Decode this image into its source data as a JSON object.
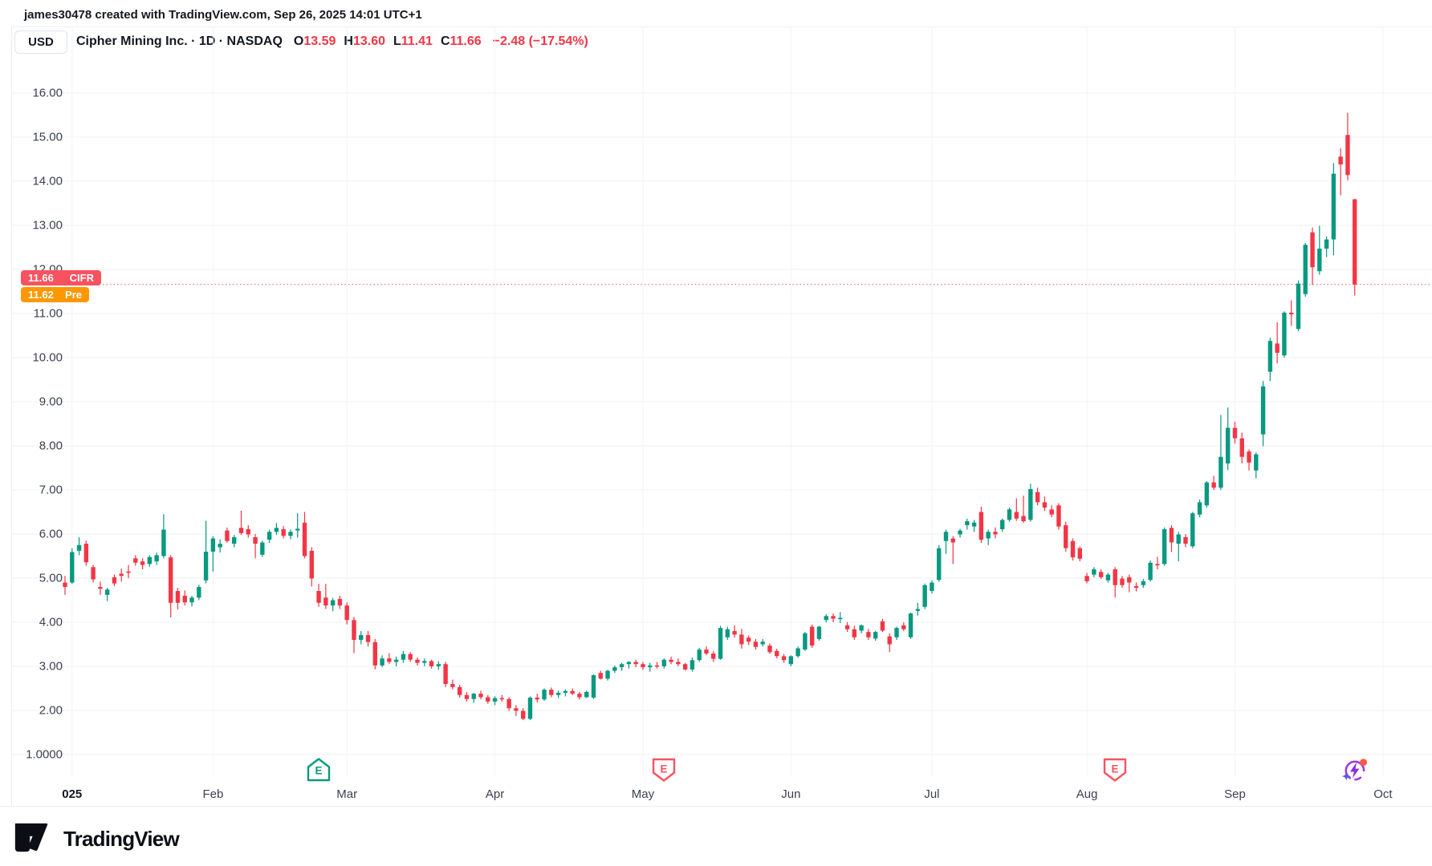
{
  "header": {
    "attribution": "james30478 created with TradingView.com, Sep 26, 2025 14:01 UTC+1"
  },
  "toolbar": {
    "currency_button": "USD"
  },
  "legend": {
    "title": "Cipher Mining Inc. · 1D · NASDAQ",
    "ohlc": [
      {
        "label": "O",
        "value": "13.59"
      },
      {
        "label": "H",
        "value": "13.60"
      },
      {
        "label": "L",
        "value": "11.41"
      },
      {
        "label": "C",
        "value": "11.66"
      }
    ],
    "change": "−2.48 (−17.54%)"
  },
  "price_labels": {
    "last": {
      "value": "11.66",
      "tag": "CIFR",
      "color": "#f7525f"
    },
    "pre": {
      "value": "11.62",
      "tag": "Pre",
      "color": "#ff9800"
    }
  },
  "footer": {
    "brand": "TradingView"
  },
  "chart_data": {
    "type": "candlestick",
    "title": "Cipher Mining Inc.",
    "symbol": "CIFR",
    "exchange": "NASDAQ",
    "interval": "1D",
    "currency": "USD",
    "last_bar": {
      "open": 13.59,
      "high": 13.6,
      "low": 11.41,
      "close": 11.66,
      "change": -2.48,
      "change_pct": -17.54
    },
    "price_line": 11.66,
    "premarket_price": 11.62,
    "ylim": [
      0.6,
      16.6
    ],
    "grid": true,
    "colors": {
      "up": "#089981",
      "down": "#f23645",
      "grid": "#f1f2f5",
      "axis_text": "#3c4150",
      "accent_red": "#f7525f",
      "accent_orange": "#ff9800"
    },
    "y_axis": {
      "ticks": [
        {
          "price": 16,
          "label": "16.00"
        },
        {
          "price": 15,
          "label": "15.00"
        },
        {
          "price": 14,
          "label": "14.00"
        },
        {
          "price": 13,
          "label": "13.00"
        },
        {
          "price": 12,
          "label": "12.00"
        },
        {
          "price": 11,
          "label": "11.00"
        },
        {
          "price": 10,
          "label": "10.00"
        },
        {
          "price": 9,
          "label": "9.00"
        },
        {
          "price": 8,
          "label": "8.00"
        },
        {
          "price": 7,
          "label": "7.00"
        },
        {
          "price": 6,
          "label": "6.00"
        },
        {
          "price": 5,
          "label": "5.00"
        },
        {
          "price": 4,
          "label": "4.00"
        },
        {
          "price": 3,
          "label": "3.00"
        },
        {
          "price": 2,
          "label": "2.00"
        },
        {
          "price": 1,
          "label": "1.0000"
        }
      ]
    },
    "x_axis": {
      "labels": [
        {
          "label": "025",
          "i": 1,
          "year": true
        },
        {
          "label": "Feb",
          "i": 21
        },
        {
          "label": "Mar",
          "i": 40
        },
        {
          "label": "Apr",
          "i": 61
        },
        {
          "label": "May",
          "i": 82
        },
        {
          "label": "Jun",
          "i": 103
        },
        {
          "label": "Jul",
          "i": 123
        },
        {
          "label": "Aug",
          "i": 145
        },
        {
          "label": "Sep",
          "i": 166
        },
        {
          "label": "Oct",
          "i": 187
        }
      ]
    },
    "markers": [
      {
        "kind": "earnings-up",
        "i": 36,
        "color": "#089981"
      },
      {
        "kind": "earnings-down",
        "i": 85,
        "color": "#f7525f"
      },
      {
        "kind": "earnings-down",
        "i": 149,
        "color": "#f7525f"
      }
    ],
    "candles": [
      [
        4.9,
        5.05,
        4.62,
        4.8
      ],
      [
        4.9,
        5.68,
        4.87,
        5.59
      ],
      [
        5.62,
        5.93,
        5.52,
        5.75
      ],
      [
        5.78,
        5.85,
        5.28,
        5.36
      ],
      [
        5.25,
        5.3,
        4.9,
        4.97
      ],
      [
        4.8,
        4.92,
        4.62,
        4.76
      ],
      [
        4.62,
        4.78,
        4.48,
        4.74
      ],
      [
        5.02,
        5.08,
        4.82,
        4.88
      ],
      [
        5.1,
        5.22,
        4.92,
        5.05
      ],
      [
        5.15,
        5.3,
        5.0,
        5.12
      ],
      [
        5.45,
        5.52,
        5.28,
        5.35
      ],
      [
        5.38,
        5.45,
        5.2,
        5.3
      ],
      [
        5.32,
        5.52,
        5.26,
        5.48
      ],
      [
        5.38,
        5.58,
        5.3,
        5.52
      ],
      [
        5.5,
        6.45,
        5.45,
        6.1
      ],
      [
        5.47,
        5.52,
        4.11,
        4.44
      ],
      [
        4.71,
        4.78,
        4.29,
        4.44
      ],
      [
        4.6,
        4.72,
        4.38,
        4.45
      ],
      [
        4.45,
        4.6,
        4.36,
        4.56
      ],
      [
        4.56,
        4.85,
        4.5,
        4.8
      ],
      [
        4.95,
        6.3,
        4.88,
        5.6
      ],
      [
        5.6,
        5.95,
        5.15,
        5.9
      ],
      [
        5.7,
        5.88,
        5.58,
        5.78
      ],
      [
        6.08,
        6.15,
        5.8,
        5.84
      ],
      [
        5.78,
        5.98,
        5.7,
        5.93
      ],
      [
        6.14,
        6.53,
        5.98,
        6.02
      ],
      [
        6.11,
        6.2,
        5.92,
        5.99
      ],
      [
        5.93,
        6.0,
        5.45,
        5.78
      ],
      [
        5.53,
        5.85,
        5.48,
        5.81
      ],
      [
        5.87,
        6.1,
        5.8,
        6.05
      ],
      [
        6.05,
        6.25,
        5.98,
        6.14
      ],
      [
        6.11,
        6.18,
        5.9,
        5.96
      ],
      [
        5.96,
        6.1,
        5.88,
        6.05
      ],
      [
        6.08,
        6.47,
        5.92,
        6.12
      ],
      [
        6.26,
        6.5,
        5.45,
        5.5
      ],
      [
        5.62,
        5.7,
        4.81,
        4.99
      ],
      [
        4.71,
        4.87,
        4.35,
        4.44
      ],
      [
        4.56,
        4.87,
        4.3,
        4.38
      ],
      [
        4.38,
        4.55,
        4.25,
        4.5
      ],
      [
        4.53,
        4.6,
        4.3,
        4.38
      ],
      [
        4.38,
        4.45,
        3.95,
        4.05
      ],
      [
        4.05,
        4.12,
        3.3,
        3.6
      ],
      [
        3.6,
        3.8,
        3.5,
        3.71
      ],
      [
        3.71,
        3.8,
        3.45,
        3.55
      ],
      [
        3.55,
        3.62,
        2.93,
        3.02
      ],
      [
        3.02,
        3.25,
        2.98,
        3.18
      ],
      [
        3.18,
        3.3,
        3.05,
        3.1
      ],
      [
        3.1,
        3.22,
        3.0,
        3.15
      ],
      [
        3.15,
        3.35,
        3.08,
        3.28
      ],
      [
        3.28,
        3.32,
        3.1,
        3.15
      ],
      [
        3.15,
        3.2,
        3.02,
        3.08
      ],
      [
        3.08,
        3.18,
        3.0,
        3.12
      ],
      [
        3.12,
        3.15,
        2.95,
        3.0
      ],
      [
        3.0,
        3.12,
        2.92,
        3.05
      ],
      [
        3.05,
        3.1,
        2.53,
        2.6
      ],
      [
        2.6,
        2.7,
        2.48,
        2.53
      ],
      [
        2.53,
        2.58,
        2.29,
        2.35
      ],
      [
        2.35,
        2.42,
        2.2,
        2.26
      ],
      [
        2.26,
        2.4,
        2.17,
        2.38
      ],
      [
        2.38,
        2.45,
        2.25,
        2.3
      ],
      [
        2.3,
        2.35,
        2.15,
        2.2
      ],
      [
        2.2,
        2.32,
        2.12,
        2.28
      ],
      [
        2.28,
        2.35,
        2.2,
        2.26
      ],
      [
        2.26,
        2.3,
        1.99,
        2.05
      ],
      [
        2.05,
        2.12,
        1.87,
        1.99
      ],
      [
        1.99,
        2.05,
        1.78,
        1.81
      ],
      [
        1.81,
        2.32,
        1.78,
        2.29
      ],
      [
        2.29,
        2.38,
        2.18,
        2.25
      ],
      [
        2.25,
        2.5,
        2.22,
        2.47
      ],
      [
        2.47,
        2.52,
        2.3,
        2.35
      ],
      [
        2.35,
        2.45,
        2.28,
        2.4
      ],
      [
        2.4,
        2.48,
        2.32,
        2.44
      ],
      [
        2.44,
        2.5,
        2.35,
        2.38
      ],
      [
        2.38,
        2.42,
        2.25,
        2.3
      ],
      [
        2.3,
        2.45,
        2.28,
        2.42
      ],
      [
        2.29,
        2.82,
        2.26,
        2.8
      ],
      [
        2.85,
        2.9,
        2.7,
        2.72
      ],
      [
        2.72,
        2.92,
        2.68,
        2.9
      ],
      [
        2.9,
        3.02,
        2.85,
        2.98
      ],
      [
        2.98,
        3.08,
        2.9,
        3.05
      ],
      [
        3.05,
        3.12,
        2.95,
        3.1
      ],
      [
        3.1,
        3.15,
        2.98,
        3.05
      ],
      [
        3.05,
        3.1,
        2.92,
        2.98
      ],
      [
        2.98,
        3.08,
        2.88,
        3.02
      ],
      [
        3.02,
        3.1,
        2.95,
        3.0
      ],
      [
        3.0,
        3.18,
        2.95,
        3.15
      ],
      [
        3.15,
        3.22,
        3.05,
        3.1
      ],
      [
        3.1,
        3.18,
        3.0,
        3.05
      ],
      [
        3.05,
        3.08,
        2.9,
        2.93
      ],
      [
        2.93,
        3.2,
        2.88,
        3.14
      ],
      [
        3.14,
        3.42,
        3.1,
        3.38
      ],
      [
        3.38,
        3.45,
        3.25,
        3.29
      ],
      [
        3.29,
        3.35,
        3.1,
        3.17
      ],
      [
        3.17,
        3.92,
        3.15,
        3.87
      ],
      [
        3.66,
        3.9,
        3.6,
        3.84
      ],
      [
        3.8,
        3.93,
        3.65,
        3.72
      ],
      [
        3.72,
        3.85,
        3.4,
        3.5
      ],
      [
        3.65,
        3.7,
        3.48,
        3.56
      ],
      [
        3.56,
        3.62,
        3.38,
        3.44
      ],
      [
        3.5,
        3.62,
        3.45,
        3.56
      ],
      [
        3.47,
        3.52,
        3.28,
        3.32
      ],
      [
        3.35,
        3.4,
        3.18,
        3.23
      ],
      [
        3.23,
        3.28,
        3.08,
        3.14
      ],
      [
        3.05,
        3.25,
        3.0,
        3.23
      ],
      [
        3.23,
        3.45,
        3.2,
        3.41
      ],
      [
        3.38,
        3.78,
        3.35,
        3.75
      ],
      [
        3.9,
        3.95,
        3.42,
        3.47
      ],
      [
        3.62,
        3.92,
        3.58,
        3.9
      ],
      [
        4.05,
        4.18,
        4.0,
        4.14
      ],
      [
        4.14,
        4.2,
        4.0,
        4.08
      ],
      [
        4.08,
        4.23,
        3.98,
        4.1
      ],
      [
        3.93,
        4.0,
        3.78,
        3.84
      ],
      [
        3.84,
        3.92,
        3.6,
        3.66
      ],
      [
        3.81,
        3.95,
        3.75,
        3.93
      ],
      [
        3.78,
        3.85,
        3.6,
        3.66
      ],
      [
        3.63,
        3.8,
        3.58,
        3.78
      ],
      [
        4.02,
        4.08,
        3.78,
        3.81
      ],
      [
        3.68,
        3.75,
        3.32,
        3.5
      ],
      [
        3.66,
        3.9,
        3.6,
        3.87
      ],
      [
        3.93,
        4.0,
        3.8,
        3.84
      ],
      [
        3.66,
        4.22,
        3.62,
        4.2
      ],
      [
        4.26,
        4.44,
        4.15,
        4.3
      ],
      [
        4.35,
        4.88,
        4.3,
        4.84
      ],
      [
        4.71,
        4.95,
        4.65,
        4.9
      ],
      [
        4.96,
        5.75,
        4.92,
        5.68
      ],
      [
        5.84,
        6.1,
        5.55,
        6.05
      ],
      [
        5.9,
        5.95,
        5.32,
        5.81
      ],
      [
        5.99,
        6.12,
        5.92,
        6.08
      ],
      [
        6.2,
        6.35,
        6.1,
        6.29
      ],
      [
        6.17,
        6.32,
        6.05,
        6.26
      ],
      [
        6.5,
        6.62,
        5.8,
        5.87
      ],
      [
        5.9,
        6.1,
        5.75,
        6.05
      ],
      [
        6.05,
        6.15,
        5.9,
        5.99
      ],
      [
        6.11,
        6.35,
        6.05,
        6.32
      ],
      [
        6.32,
        6.6,
        6.28,
        6.56
      ],
      [
        6.5,
        6.81,
        6.3,
        6.35
      ],
      [
        6.41,
        6.87,
        6.25,
        6.29
      ],
      [
        6.32,
        7.14,
        6.28,
        7.02
      ],
      [
        6.95,
        7.05,
        6.65,
        6.72
      ],
      [
        6.72,
        6.85,
        6.52,
        6.6
      ],
      [
        6.56,
        6.65,
        6.38,
        6.44
      ],
      [
        6.65,
        6.7,
        6.1,
        6.17
      ],
      [
        6.2,
        6.28,
        5.6,
        5.68
      ],
      [
        5.84,
        5.9,
        5.4,
        5.47
      ],
      [
        5.68,
        5.72,
        5.38,
        5.44
      ],
      [
        5.05,
        5.12,
        4.88,
        4.93
      ],
      [
        5.08,
        5.25,
        5.02,
        5.2
      ],
      [
        5.14,
        5.2,
        4.98,
        5.02
      ],
      [
        4.95,
        5.12,
        4.9,
        5.08
      ],
      [
        5.2,
        5.25,
        4.56,
        4.84
      ],
      [
        4.99,
        5.05,
        4.78,
        4.84
      ],
      [
        5.02,
        5.08,
        4.68,
        4.9
      ],
      [
        4.82,
        4.9,
        4.7,
        4.78
      ],
      [
        4.84,
        4.98,
        4.78,
        4.93
      ],
      [
        4.96,
        5.4,
        4.92,
        5.35
      ],
      [
        5.32,
        5.48,
        5.2,
        5.29
      ],
      [
        5.32,
        6.15,
        5.28,
        6.11
      ],
      [
        6.14,
        6.2,
        5.59,
        5.81
      ],
      [
        5.78,
        6.05,
        5.38,
        5.99
      ],
      [
        5.93,
        6.0,
        5.7,
        5.78
      ],
      [
        5.72,
        6.5,
        5.68,
        6.47
      ],
      [
        6.44,
        6.78,
        6.38,
        6.72
      ],
      [
        6.65,
        7.2,
        6.6,
        7.17
      ],
      [
        7.17,
        7.32,
        7.0,
        7.05
      ],
      [
        7.05,
        8.7,
        7.0,
        7.75
      ],
      [
        7.6,
        8.87,
        7.45,
        8.41
      ],
      [
        8.41,
        8.55,
        8.05,
        8.17
      ],
      [
        8.17,
        8.3,
        7.6,
        7.75
      ],
      [
        7.87,
        7.92,
        7.44,
        7.62
      ],
      [
        7.44,
        7.85,
        7.26,
        7.81
      ],
      [
        8.26,
        9.47,
        7.99,
        9.35
      ],
      [
        9.68,
        10.45,
        9.47,
        10.38
      ],
      [
        10.32,
        10.8,
        9.87,
        10.11
      ],
      [
        10.05,
        11.05,
        10.0,
        11.02
      ],
      [
        11.02,
        11.3,
        10.72,
        10.98
      ],
      [
        10.65,
        11.75,
        10.6,
        11.68
      ],
      [
        11.44,
        12.6,
        11.38,
        12.56
      ],
      [
        12.84,
        12.95,
        11.65,
        12.05
      ],
      [
        11.96,
        12.99,
        11.88,
        12.47
      ],
      [
        12.47,
        12.75,
        12.28,
        12.68
      ],
      [
        12.68,
        14.41,
        12.32,
        14.17
      ],
      [
        14.56,
        14.75,
        13.68,
        14.38
      ],
      [
        15.05,
        15.55,
        14.02,
        14.14
      ],
      [
        13.59,
        13.6,
        11.41,
        11.66
      ]
    ]
  }
}
